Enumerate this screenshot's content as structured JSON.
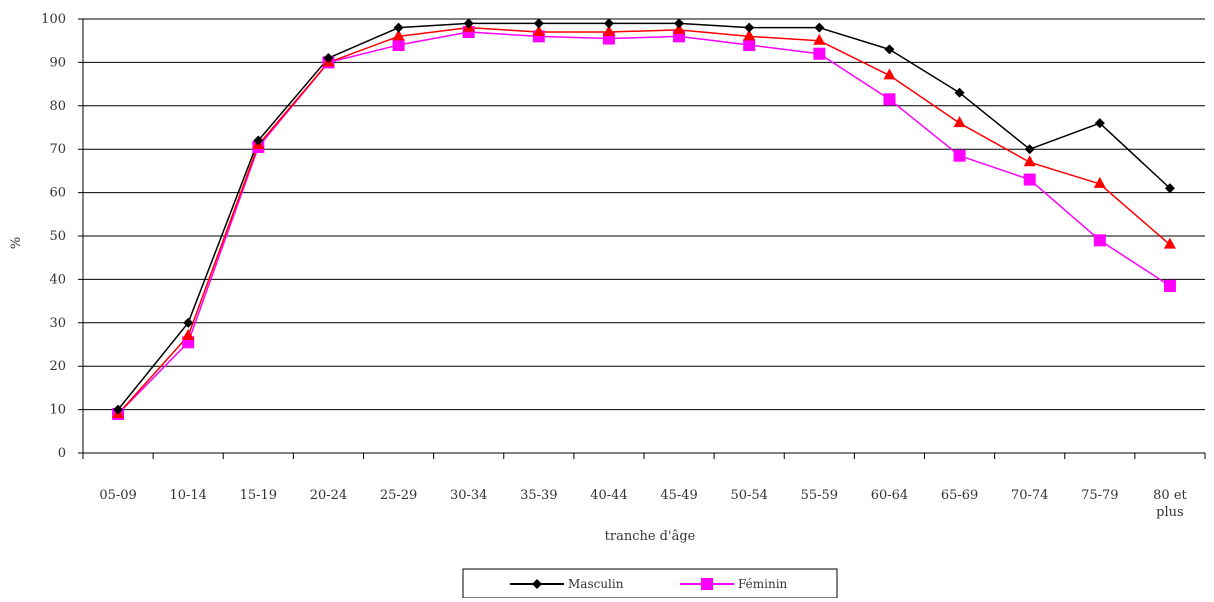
{
  "chart_data": {
    "type": "line",
    "title": "",
    "xlabel": "tranche d'âge",
    "ylabel": "%",
    "ylim": [
      0,
      100
    ],
    "yticks": [
      0,
      10,
      20,
      30,
      40,
      50,
      60,
      70,
      80,
      90,
      100
    ],
    "grid": true,
    "legend_position": "bottom-center",
    "categories": [
      "05-09",
      "10-14",
      "15-19",
      "20-24",
      "25-29",
      "30-34",
      "35-39",
      "40-44",
      "45-49",
      "50-54",
      "55-59",
      "60-64",
      "65-69",
      "70-74",
      "75-79",
      "80 et plus"
    ],
    "category_lines": [
      [
        "05-09"
      ],
      [
        "10-14"
      ],
      [
        "15-19"
      ],
      [
        "20-24"
      ],
      [
        "25-29"
      ],
      [
        "30-34"
      ],
      [
        "35-39"
      ],
      [
        "40-44"
      ],
      [
        "45-49"
      ],
      [
        "50-54"
      ],
      [
        "55-59"
      ],
      [
        "60-64"
      ],
      [
        "65-69"
      ],
      [
        "70-74"
      ],
      [
        "75-79"
      ],
      [
        "80 et",
        "plus"
      ]
    ],
    "series": [
      {
        "name": "Masculin",
        "color": "#000000",
        "marker": "diamond",
        "in_legend": true,
        "values": [
          10,
          30,
          72,
          91,
          98,
          99,
          99,
          99,
          99,
          98,
          98,
          93,
          83,
          70,
          76,
          61
        ]
      },
      {
        "name": "",
        "color": "#ff0000",
        "marker": "triangle",
        "in_legend": false,
        "values": [
          9,
          27,
          71,
          90,
          96,
          98,
          97,
          97,
          97.5,
          96,
          95,
          87,
          76,
          67,
          62,
          48
        ]
      },
      {
        "name": "Féminin",
        "color": "#ff00ff",
        "marker": "square",
        "in_legend": true,
        "values": [
          9,
          25.5,
          70.5,
          90,
          94,
          97,
          96,
          95.5,
          96,
          94,
          92,
          81.5,
          68.5,
          63,
          49,
          38.5
        ]
      }
    ]
  }
}
